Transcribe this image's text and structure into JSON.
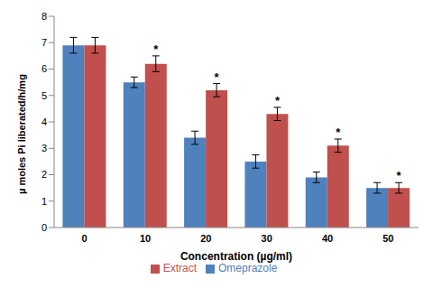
{
  "chart_data": {
    "type": "bar",
    "xlabel": "Concentration (µg/ml)",
    "ylabel": "µ moles Pi liberated/h/mg",
    "categories": [
      "0",
      "10",
      "20",
      "30",
      "40",
      "50"
    ],
    "series": [
      {
        "name": "Omeprazole",
        "color": "#4f81bd",
        "values": [
          6.9,
          5.5,
          3.4,
          2.5,
          1.9,
          1.5
        ],
        "errors": [
          0.3,
          0.2,
          0.25,
          0.25,
          0.2,
          0.2
        ]
      },
      {
        "name": "Extract",
        "color": "#c0504d",
        "values": [
          6.9,
          6.2,
          5.2,
          4.3,
          3.1,
          1.5
        ],
        "errors": [
          0.3,
          0.3,
          0.25,
          0.25,
          0.25,
          0.2
        ],
        "significance": [
          null,
          "*",
          "*",
          "*",
          "*",
          "*"
        ]
      }
    ],
    "ylim": [
      0,
      8
    ],
    "yticks": [
      0,
      1,
      2,
      3,
      4,
      5,
      6,
      7,
      8
    ],
    "grid": false,
    "legend": "bottom"
  }
}
